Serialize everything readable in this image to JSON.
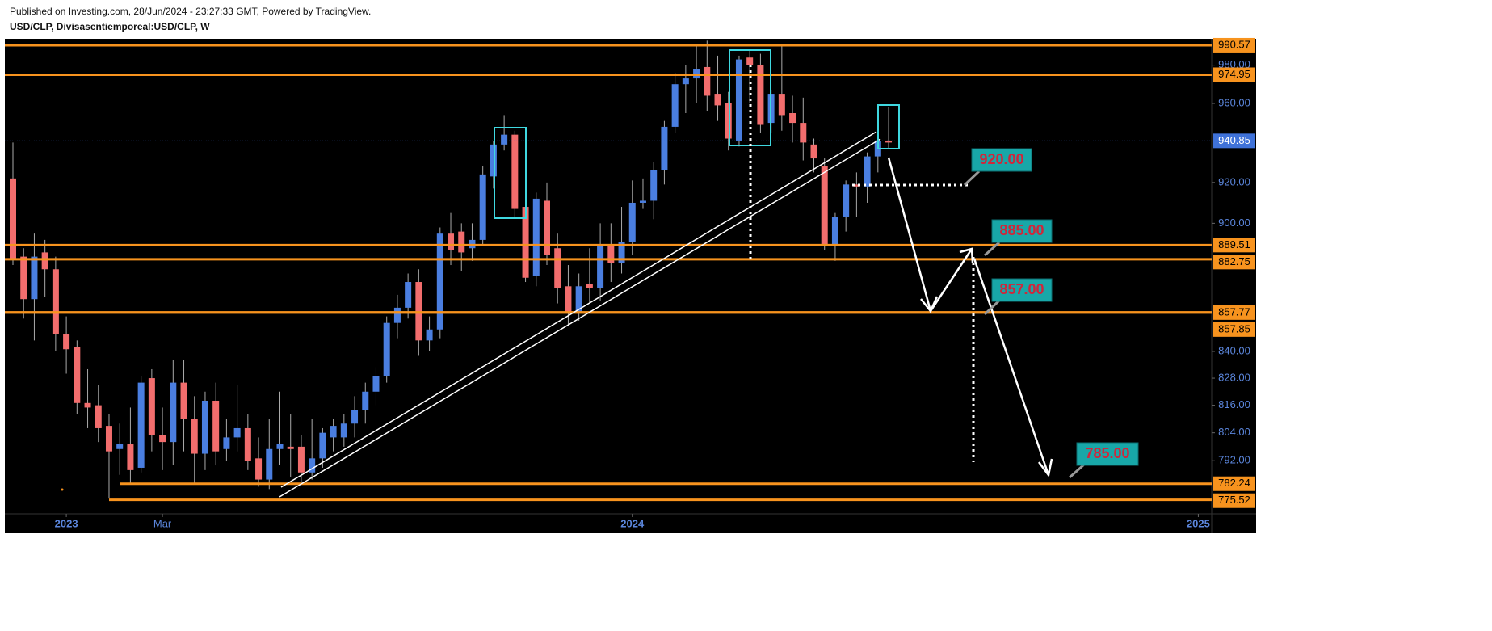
{
  "chart_data": {
    "type": "candlestick",
    "subtitle": "Published on Investing.com, 28/Jun/2024 - 23:27:33 GMT, Powered by TradingView.",
    "title": "USD/CLP, Divisasentiemporeal:USD/CLP, W",
    "log_scale": true,
    "grid": false,
    "up_color": "#4a7ee0",
    "down_color": "#f26d6d",
    "level_color": "#f7931e",
    "last_price_color": "#3f72d9",
    "categories": [
      null,
      null,
      null,
      null,
      null,
      "2023",
      null,
      null,
      null,
      null,
      null,
      null,
      null,
      null,
      "Mar",
      null,
      null,
      null,
      null,
      null,
      null,
      null,
      null,
      null,
      null,
      null,
      null,
      null,
      null,
      null,
      null,
      null,
      null,
      null,
      null,
      null,
      null,
      null,
      null,
      null,
      null,
      null,
      null,
      null,
      null,
      null,
      null,
      null,
      null,
      null,
      null,
      null,
      null,
      null,
      null,
      null,
      null,
      null,
      "2024",
      null,
      null,
      null,
      null,
      null,
      null,
      null,
      null,
      null,
      null,
      null,
      null,
      null,
      null,
      null,
      null,
      null,
      null,
      null,
      null,
      null,
      null,
      null,
      null,
      null,
      null,
      null,
      null,
      null,
      null,
      null,
      null,
      null,
      null,
      null,
      null,
      null,
      null,
      null,
      null,
      null,
      null,
      null,
      null,
      null,
      null,
      null,
      null,
      null,
      null,
      null,
      null,
      "2025",
      null
    ],
    "open": [
      922,
      884,
      864,
      886,
      878,
      848,
      842,
      817,
      816,
      807,
      797,
      799,
      789,
      828,
      803,
      800,
      826,
      810,
      795,
      818,
      797,
      802,
      806,
      793,
      784,
      797,
      798,
      798,
      787,
      793,
      802,
      802,
      808,
      814,
      822,
      829,
      853,
      860,
      872,
      845,
      850,
      895,
      896,
      888,
      892,
      923,
      939,
      944,
      908,
      875,
      911,
      888,
      870,
      858,
      871,
      869,
      889,
      881,
      891,
      910,
      911,
      926,
      948,
      970,
      973,
      979,
      965,
      960,
      941,
      984,
      980,
      950,
      965,
      955,
      950,
      939,
      928,
      890,
      903,
      919,
      918,
      933,
      941,
      null,
      null,
      null,
      null,
      null,
      null,
      null,
      null,
      null,
      null,
      null,
      null,
      null,
      null,
      null,
      null,
      null,
      null,
      null,
      null,
      null,
      null,
      null,
      null,
      null,
      null,
      null,
      null,
      null,
      null
    ],
    "high": [
      940,
      888,
      895,
      892,
      884,
      856,
      845,
      832,
      825,
      812,
      808,
      815,
      829,
      832,
      815,
      836,
      836,
      820,
      822,
      826,
      810,
      825,
      812,
      802,
      810,
      822,
      812,
      803,
      810,
      806,
      810,
      812,
      820,
      826,
      833,
      856,
      866,
      876,
      878,
      856,
      898,
      905,
      900,
      900,
      928,
      941,
      954,
      946,
      915,
      915,
      920,
      895,
      880,
      876,
      888,
      900,
      900,
      908,
      921,
      922,
      930,
      951,
      976,
      980,
      990,
      993,
      985,
      966,
      985,
      988,
      986,
      967,
      990,
      964,
      963,
      942,
      932,
      905,
      921,
      925,
      935,
      948,
      958,
      null,
      null,
      null,
      null,
      null,
      null,
      null,
      null,
      null,
      null,
      null,
      null,
      null,
      null,
      null,
      null,
      null,
      null,
      null,
      null,
      null,
      null,
      null,
      null,
      null,
      null,
      null,
      null,
      null,
      null
    ],
    "low": [
      880,
      855,
      845,
      865,
      840,
      830,
      812,
      806,
      800,
      776,
      786,
      782,
      787,
      796,
      788,
      790,
      796,
      782,
      788,
      790,
      792,
      796,
      788,
      781,
      780,
      790,
      785,
      783,
      784,
      789,
      796,
      798,
      802,
      808,
      816,
      826,
      846,
      855,
      838,
      840,
      846,
      880,
      877,
      882,
      889,
      917,
      936,
      903,
      872,
      870,
      880,
      862,
      852,
      854,
      862,
      863,
      872,
      876,
      885,
      907,
      902,
      919,
      945,
      955,
      960,
      956,
      951,
      936,
      938,
      960,
      945,
      945,
      946,
      940,
      931,
      925,
      887,
      882,
      896,
      903,
      910,
      925,
      937,
      null,
      null,
      null,
      null,
      null,
      null,
      null,
      null,
      null,
      null,
      null,
      null,
      null,
      null,
      null,
      null,
      null,
      null,
      null,
      null,
      null,
      null,
      null,
      null,
      null,
      null,
      null,
      null,
      null,
      null
    ],
    "close": [
      883,
      864,
      884,
      878,
      848,
      841,
      817,
      815,
      806,
      796,
      799,
      788,
      826,
      803,
      800,
      826,
      810,
      795,
      818,
      796,
      802,
      806,
      792,
      784,
      797,
      799,
      797,
      787,
      793,
      804,
      807,
      808,
      814,
      822,
      829,
      853,
      860,
      872,
      845,
      850,
      895,
      887,
      886,
      892,
      924,
      939,
      944,
      907,
      874,
      912,
      885,
      869,
      858,
      870,
      869,
      890,
      881,
      891,
      910,
      911,
      926,
      948,
      970,
      973,
      978,
      964,
      959,
      942,
      983,
      980,
      949,
      965,
      954,
      950,
      940,
      932,
      889,
      903,
      919,
      918,
      933,
      941,
      940,
      null,
      null,
      null,
      null,
      null,
      null,
      null,
      null,
      null,
      null,
      null,
      null,
      null,
      null,
      null,
      null,
      null,
      null,
      null,
      null,
      null,
      null,
      null,
      null,
      null,
      null,
      null,
      null,
      null,
      null
    ],
    "ylim": [
      770,
      994
    ],
    "yticks": [
      {
        "value": 980,
        "label": "980.00"
      },
      {
        "value": 960,
        "label": "960.00"
      },
      {
        "value": 920,
        "label": "920.00"
      },
      {
        "value": 900,
        "label": "900.00"
      },
      {
        "value": 840,
        "label": "840.00"
      },
      {
        "value": 828,
        "label": "828.00"
      },
      {
        "value": 816,
        "label": "816.00"
      },
      {
        "value": 804,
        "label": "804.00"
      },
      {
        "value": 792,
        "label": "792.00"
      }
    ],
    "levels": [
      990.57,
      974.95,
      889.51,
      882.75,
      857.77,
      857.85,
      782.24,
      775.52
    ],
    "last_price": 940.85,
    "annotations": [
      "920.00",
      "885.00",
      "857.00",
      "785.00"
    ]
  }
}
